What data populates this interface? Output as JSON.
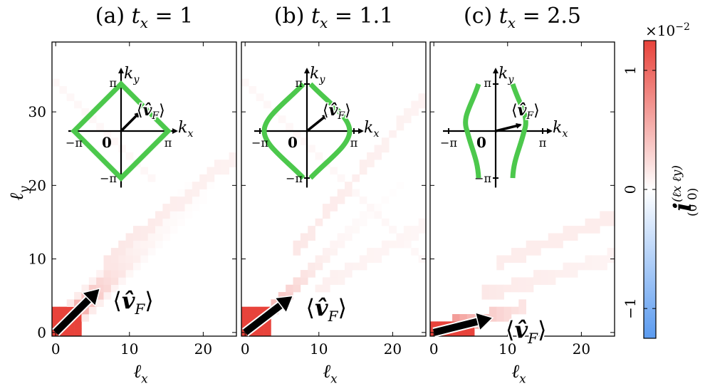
{
  "chart_data": [
    {
      "type": "heatmap",
      "title": "(a)  t_x = 1",
      "title_label": "(a)",
      "title_param": "t",
      "title_param_sub": "x",
      "title_value": "= 1",
      "xlabel": "ℓ",
      "xlabel_sub": "x",
      "ylabel": "ℓ",
      "ylabel_sub": "y",
      "xlim": [
        -0.5,
        24.5
      ],
      "ylim": [
        -0.5,
        39.5
      ],
      "xticks": [
        "0",
        "10",
        "20"
      ],
      "yticks": [
        "0",
        "10",
        "20",
        "30"
      ],
      "arrow": {
        "from": [
          0,
          0
        ],
        "to": [
          6,
          6
        ]
      },
      "arrow_label": "⟨v̂_F⟩",
      "inset": {
        "fermi_shape": "diamond",
        "vF_direction": [
          1,
          1
        ]
      }
    },
    {
      "type": "heatmap",
      "title": "(b)  t_x = 1.1",
      "title_label": "(b)",
      "title_param": "t",
      "title_param_sub": "x",
      "title_value": "= 1.1",
      "xlabel": "ℓ",
      "xlabel_sub": "x",
      "xlim": [
        -0.5,
        24.5
      ],
      "ylim": [
        -0.5,
        39.5
      ],
      "xticks": [
        "0",
        "10",
        "20"
      ],
      "arrow": {
        "from": [
          0,
          0
        ],
        "to": [
          6.5,
          5
        ]
      },
      "arrow_label": "⟨v̂_F⟩",
      "inset": {
        "fermi_shape": "rounded",
        "vF_direction": [
          1,
          0.8
        ]
      }
    },
    {
      "type": "heatmap",
      "title": "(c)  t_x = 2.5",
      "title_label": "(c)",
      "title_param": "t",
      "title_param_sub": "x",
      "title_value": "= 2.5",
      "xlabel": "ℓ",
      "xlabel_sub": "x",
      "xlim": [
        -0.5,
        24.5
      ],
      "ylim": [
        -0.5,
        39.5
      ],
      "xticks": [
        "0",
        "10",
        "20"
      ],
      "arrow": {
        "from": [
          0,
          0
        ],
        "to": [
          8,
          2
        ]
      },
      "arrow_label": "⟨v̂_F⟩",
      "inset": {
        "fermi_shape": "open",
        "vF_direction": [
          1,
          0.25
        ]
      }
    }
  ],
  "inset_labels": {
    "ky": "k",
    "ky_sub": "y",
    "kx": "k",
    "kx_sub": "x",
    "pi": "π",
    "minus_pi": "−π",
    "zero": "0"
  },
  "colorbar": {
    "multiplier": "×10",
    "multiplier_exp": "−2",
    "ticks": [
      "1",
      "0",
      "−1"
    ],
    "tick_values": [
      1,
      0,
      -1
    ],
    "range": [
      -1.25,
      1.25
    ],
    "label": "i",
    "label_sup": "(ℓx ℓy)",
    "label_sub": "(0 0)",
    "colors": {
      "high": "#e8433b",
      "mid": "#ffffff",
      "low": "#5b9bf0"
    }
  },
  "colors": {
    "fermi_surface": "#4cc84c",
    "arrow": "#000000",
    "heat": "#e8433b",
    "cold": "#5b9bf0"
  }
}
